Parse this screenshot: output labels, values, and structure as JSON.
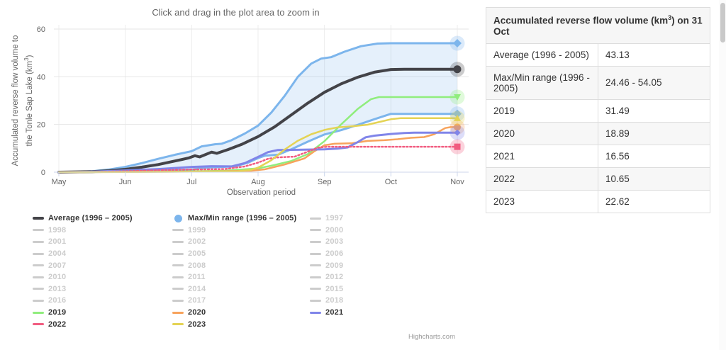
{
  "chart": {
    "title": "Click and drag in the plot area to zoom in",
    "credit": "Highcharts.com",
    "x_axis": {
      "title": "Observation period",
      "ticks": [
        "May",
        "Jun",
        "Jul",
        "Aug",
        "Sep",
        "Oct",
        "Nov"
      ]
    },
    "y_axis": {
      "title_line1": "Accumulated reverse flow volume to",
      "title_line2_prefix": "the Tonle Sap Lake (km",
      "title_sup": "3",
      "title_line2_suffix": ")",
      "ticks": [
        0,
        20,
        40,
        60
      ]
    }
  },
  "chart_data": {
    "type": "line",
    "title": "Click and drag in the plot area to zoom in",
    "xlabel": "Observation period",
    "ylabel": "Accumulated reverse flow volume to the Tonle Sap Lake (km3)",
    "x_unit": "months after 1 May (0 = 1 May, 6 = 1 Nov)",
    "xlim": [
      0,
      6
    ],
    "ylim": [
      0,
      60
    ],
    "grid": true,
    "legend_position": "bottom",
    "range_fill_color": "rgba(124,181,236,0.2)",
    "series": [
      {
        "name": "Max (1996 - 2005)",
        "color": "#7cb5ec",
        "width": 3,
        "marker": "diamond",
        "marker_r": 6,
        "end_value": 54.05,
        "points": [
          [
            0,
            0
          ],
          [
            0.25,
            0.1
          ],
          [
            0.5,
            0.4
          ],
          [
            0.75,
            1.1
          ],
          [
            1,
            2.2
          ],
          [
            1.25,
            3.8
          ],
          [
            1.5,
            5.6
          ],
          [
            1.75,
            7.3
          ],
          [
            2,
            8.8
          ],
          [
            2.15,
            10.8
          ],
          [
            2.35,
            11.7
          ],
          [
            2.45,
            11.9
          ],
          [
            2.6,
            13.4
          ],
          [
            2.8,
            16.2
          ],
          [
            3,
            19.5
          ],
          [
            3.2,
            25
          ],
          [
            3.4,
            32
          ],
          [
            3.6,
            40
          ],
          [
            3.8,
            45.5
          ],
          [
            3.95,
            47.6
          ],
          [
            4.1,
            48.2
          ],
          [
            4.3,
            50.5
          ],
          [
            4.55,
            52.8
          ],
          [
            4.8,
            53.9
          ],
          [
            5,
            54.05
          ],
          [
            6,
            54.05
          ]
        ]
      },
      {
        "name": "Min (1996 - 2005)",
        "color": "#7cb5ec",
        "width": 3,
        "marker": "diamond",
        "marker_r": 6,
        "end_value": 24.46,
        "points": [
          [
            0,
            0
          ],
          [
            0.5,
            0.1
          ],
          [
            1,
            0.3
          ],
          [
            1.5,
            0.6
          ],
          [
            2,
            1.1
          ],
          [
            2.2,
            1.9
          ],
          [
            2.45,
            2.2
          ],
          [
            2.65,
            2.4
          ],
          [
            2.85,
            4
          ],
          [
            3,
            5.9
          ],
          [
            3.1,
            6.9
          ],
          [
            3.3,
            7.3
          ],
          [
            3.5,
            9.6
          ],
          [
            3.75,
            12.8
          ],
          [
            4,
            15.8
          ],
          [
            4.25,
            17.6
          ],
          [
            4.5,
            19.8
          ],
          [
            4.75,
            22.2
          ],
          [
            5,
            24.46
          ],
          [
            6,
            24.46
          ]
        ]
      },
      {
        "name": "Average (1996 - 2005)",
        "color": "#434348",
        "width": 4,
        "marker": "circle",
        "marker_r": 5.5,
        "end_value": 43.13,
        "points": [
          [
            0,
            0
          ],
          [
            0.5,
            0.25
          ],
          [
            0.75,
            0.6
          ],
          [
            1,
            1.2
          ],
          [
            1.25,
            2.1
          ],
          [
            1.5,
            3.2
          ],
          [
            1.75,
            4.7
          ],
          [
            1.95,
            5.9
          ],
          [
            2.05,
            6.9
          ],
          [
            2.12,
            6.4
          ],
          [
            2.3,
            8.4
          ],
          [
            2.38,
            7.9
          ],
          [
            2.55,
            9.5
          ],
          [
            2.75,
            11.6
          ],
          [
            3,
            14.9
          ],
          [
            3.25,
            19
          ],
          [
            3.5,
            24
          ],
          [
            3.75,
            29
          ],
          [
            4,
            33.5
          ],
          [
            4.25,
            37
          ],
          [
            4.5,
            39.8
          ],
          [
            4.75,
            41.9
          ],
          [
            5,
            43.05
          ],
          [
            5.2,
            43.13
          ],
          [
            6,
            43.13
          ]
        ]
      },
      {
        "name": "2019",
        "color": "#90ed7d",
        "width": 2.5,
        "marker": "triangle-down",
        "marker_r": 5,
        "end_value": 31.49,
        "points": [
          [
            0,
            0
          ],
          [
            1,
            0.15
          ],
          [
            2,
            0.4
          ],
          [
            2.5,
            0.6
          ],
          [
            3,
            1.6
          ],
          [
            3.25,
            3
          ],
          [
            3.5,
            4.7
          ],
          [
            3.75,
            7.6
          ],
          [
            4,
            13
          ],
          [
            4.25,
            20
          ],
          [
            4.5,
            26.5
          ],
          [
            4.7,
            30.6
          ],
          [
            4.82,
            31.49
          ],
          [
            6,
            31.49
          ]
        ]
      },
      {
        "name": "2020",
        "color": "#f7a35c",
        "width": 2.5,
        "marker": "circle",
        "marker_r": 5,
        "end_value": 18.89,
        "points": [
          [
            0,
            0
          ],
          [
            1,
            0.1
          ],
          [
            2,
            0.25
          ],
          [
            2.9,
            0.6
          ],
          [
            3.1,
            1.2
          ],
          [
            3.4,
            3.2
          ],
          [
            3.7,
            5.8
          ],
          [
            3.85,
            8.8
          ],
          [
            4,
            11.3
          ],
          [
            4.15,
            11.9
          ],
          [
            4.4,
            12.1
          ],
          [
            4.65,
            13.1
          ],
          [
            4.9,
            13.4
          ],
          [
            5.1,
            13.8
          ],
          [
            5.3,
            14.4
          ],
          [
            5.5,
            14.7
          ],
          [
            5.65,
            15.9
          ],
          [
            5.82,
            18.5
          ],
          [
            5.9,
            18.89
          ],
          [
            6,
            18.89
          ]
        ]
      },
      {
        "name": "2021",
        "color": "#8085e9",
        "width": 3,
        "marker": "diamond",
        "marker_r": 4.5,
        "end_value": 16.56,
        "points": [
          [
            0,
            0
          ],
          [
            0.5,
            0.2
          ],
          [
            1,
            0.7
          ],
          [
            1.5,
            1.3
          ],
          [
            2,
            2.2
          ],
          [
            2.3,
            2.5
          ],
          [
            2.6,
            2.4
          ],
          [
            2.8,
            3.8
          ],
          [
            3,
            6.4
          ],
          [
            3.15,
            8.4
          ],
          [
            3.3,
            9.3
          ],
          [
            3.6,
            9.4
          ],
          [
            4,
            9.6
          ],
          [
            4.2,
            9.9
          ],
          [
            4.35,
            10.4
          ],
          [
            4.5,
            12.6
          ],
          [
            4.62,
            14.6
          ],
          [
            4.75,
            15.3
          ],
          [
            5,
            16
          ],
          [
            5.2,
            16.4
          ],
          [
            5.35,
            16.56
          ],
          [
            6,
            16.56
          ]
        ]
      },
      {
        "name": "2022",
        "color": "#f15c80",
        "width": 2.5,
        "marker": "square",
        "marker_r": 4.5,
        "dash": "2,3",
        "end_value": 10.65,
        "points": [
          [
            0,
            0
          ],
          [
            0.5,
            0.1
          ],
          [
            1,
            0.4
          ],
          [
            1.5,
            0.8
          ],
          [
            2,
            1.1
          ],
          [
            2.5,
            1.3
          ],
          [
            2.8,
            2.4
          ],
          [
            3,
            4
          ],
          [
            3.15,
            5.6
          ],
          [
            3.3,
            6.2
          ],
          [
            3.55,
            6.5
          ],
          [
            3.75,
            8.6
          ],
          [
            3.9,
            10.3
          ],
          [
            4.05,
            10.65
          ],
          [
            6,
            10.65
          ]
        ]
      },
      {
        "name": "2023",
        "color": "#e4d354",
        "width": 2.5,
        "marker": "triangle",
        "marker_r": 5,
        "end_value": 22.62,
        "points": [
          [
            0,
            0
          ],
          [
            1,
            0.1
          ],
          [
            2,
            0.2
          ],
          [
            2.7,
            0.4
          ],
          [
            2.9,
            1
          ],
          [
            3,
            1.9
          ],
          [
            3.2,
            5
          ],
          [
            3.4,
            9.5
          ],
          [
            3.6,
            13.2
          ],
          [
            3.8,
            15.9
          ],
          [
            4,
            17.7
          ],
          [
            4.2,
            18.8
          ],
          [
            4.45,
            19.3
          ],
          [
            4.65,
            19.9
          ],
          [
            4.85,
            21.2
          ],
          [
            5,
            22.2
          ],
          [
            5.15,
            22.62
          ],
          [
            6,
            22.62
          ]
        ]
      }
    ]
  },
  "legend": {
    "items": [
      {
        "label": "Average (1996 – 2005)",
        "color": "#434348",
        "symbol": "dash-thick",
        "active": true
      },
      {
        "label": "Max/Min range (1996 – 2005)",
        "color": "#7cb5ec",
        "symbol": "circle",
        "active": true
      },
      {
        "label": "1997",
        "color": "#cccccc",
        "symbol": "dash",
        "active": false
      },
      {
        "label": "1998",
        "color": "#cccccc",
        "symbol": "dash",
        "active": false
      },
      {
        "label": "1999",
        "color": "#cccccc",
        "symbol": "dash",
        "active": false
      },
      {
        "label": "2000",
        "color": "#cccccc",
        "symbol": "dash",
        "active": false
      },
      {
        "label": "2001",
        "color": "#cccccc",
        "symbol": "dash",
        "active": false
      },
      {
        "label": "2002",
        "color": "#cccccc",
        "symbol": "dash",
        "active": false
      },
      {
        "label": "2003",
        "color": "#cccccc",
        "symbol": "dash",
        "active": false
      },
      {
        "label": "2004",
        "color": "#cccccc",
        "symbol": "dash",
        "active": false
      },
      {
        "label": "2005",
        "color": "#cccccc",
        "symbol": "dash",
        "active": false
      },
      {
        "label": "2006",
        "color": "#cccccc",
        "symbol": "dash",
        "active": false
      },
      {
        "label": "2007",
        "color": "#cccccc",
        "symbol": "dash",
        "active": false
      },
      {
        "label": "2008",
        "color": "#cccccc",
        "symbol": "dash",
        "active": false
      },
      {
        "label": "2009",
        "color": "#cccccc",
        "symbol": "dash",
        "active": false
      },
      {
        "label": "2010",
        "color": "#cccccc",
        "symbol": "dash",
        "active": false
      },
      {
        "label": "2011",
        "color": "#cccccc",
        "symbol": "dash",
        "active": false
      },
      {
        "label": "2012",
        "color": "#cccccc",
        "symbol": "dash",
        "active": false
      },
      {
        "label": "2013",
        "color": "#cccccc",
        "symbol": "dash",
        "active": false
      },
      {
        "label": "2014",
        "color": "#cccccc",
        "symbol": "dash",
        "active": false
      },
      {
        "label": "2015",
        "color": "#cccccc",
        "symbol": "dash",
        "active": false
      },
      {
        "label": "2016",
        "color": "#cccccc",
        "symbol": "dash",
        "active": false
      },
      {
        "label": "2017",
        "color": "#cccccc",
        "symbol": "dash",
        "active": false
      },
      {
        "label": "2018",
        "color": "#cccccc",
        "symbol": "dash",
        "active": false
      },
      {
        "label": "2019",
        "color": "#90ed7d",
        "symbol": "dash",
        "active": true
      },
      {
        "label": "2020",
        "color": "#f7a35c",
        "symbol": "dash",
        "active": true
      },
      {
        "label": "2021",
        "color": "#8085e9",
        "symbol": "dash",
        "active": true
      },
      {
        "label": "2022",
        "color": "#f15c80",
        "symbol": "dash",
        "active": true
      },
      {
        "label": "2023",
        "color": "#e4d354",
        "symbol": "dash",
        "active": true
      }
    ]
  },
  "table": {
    "header_prefix": "Accumulated reverse flow volume (km",
    "header_sup": "3",
    "header_suffix": ") on 31 Oct",
    "rows": [
      {
        "label": "Average (1996 - 2005)",
        "value": "43.13"
      },
      {
        "label": "Max/Min range (1996 - 2005)",
        "value": "24.46 - 54.05"
      },
      {
        "label": "2019",
        "value": "31.49"
      },
      {
        "label": "2020",
        "value": "18.89"
      },
      {
        "label": "2021",
        "value": "16.56"
      },
      {
        "label": "2022",
        "value": "10.65"
      },
      {
        "label": "2023",
        "value": "22.62"
      }
    ]
  }
}
